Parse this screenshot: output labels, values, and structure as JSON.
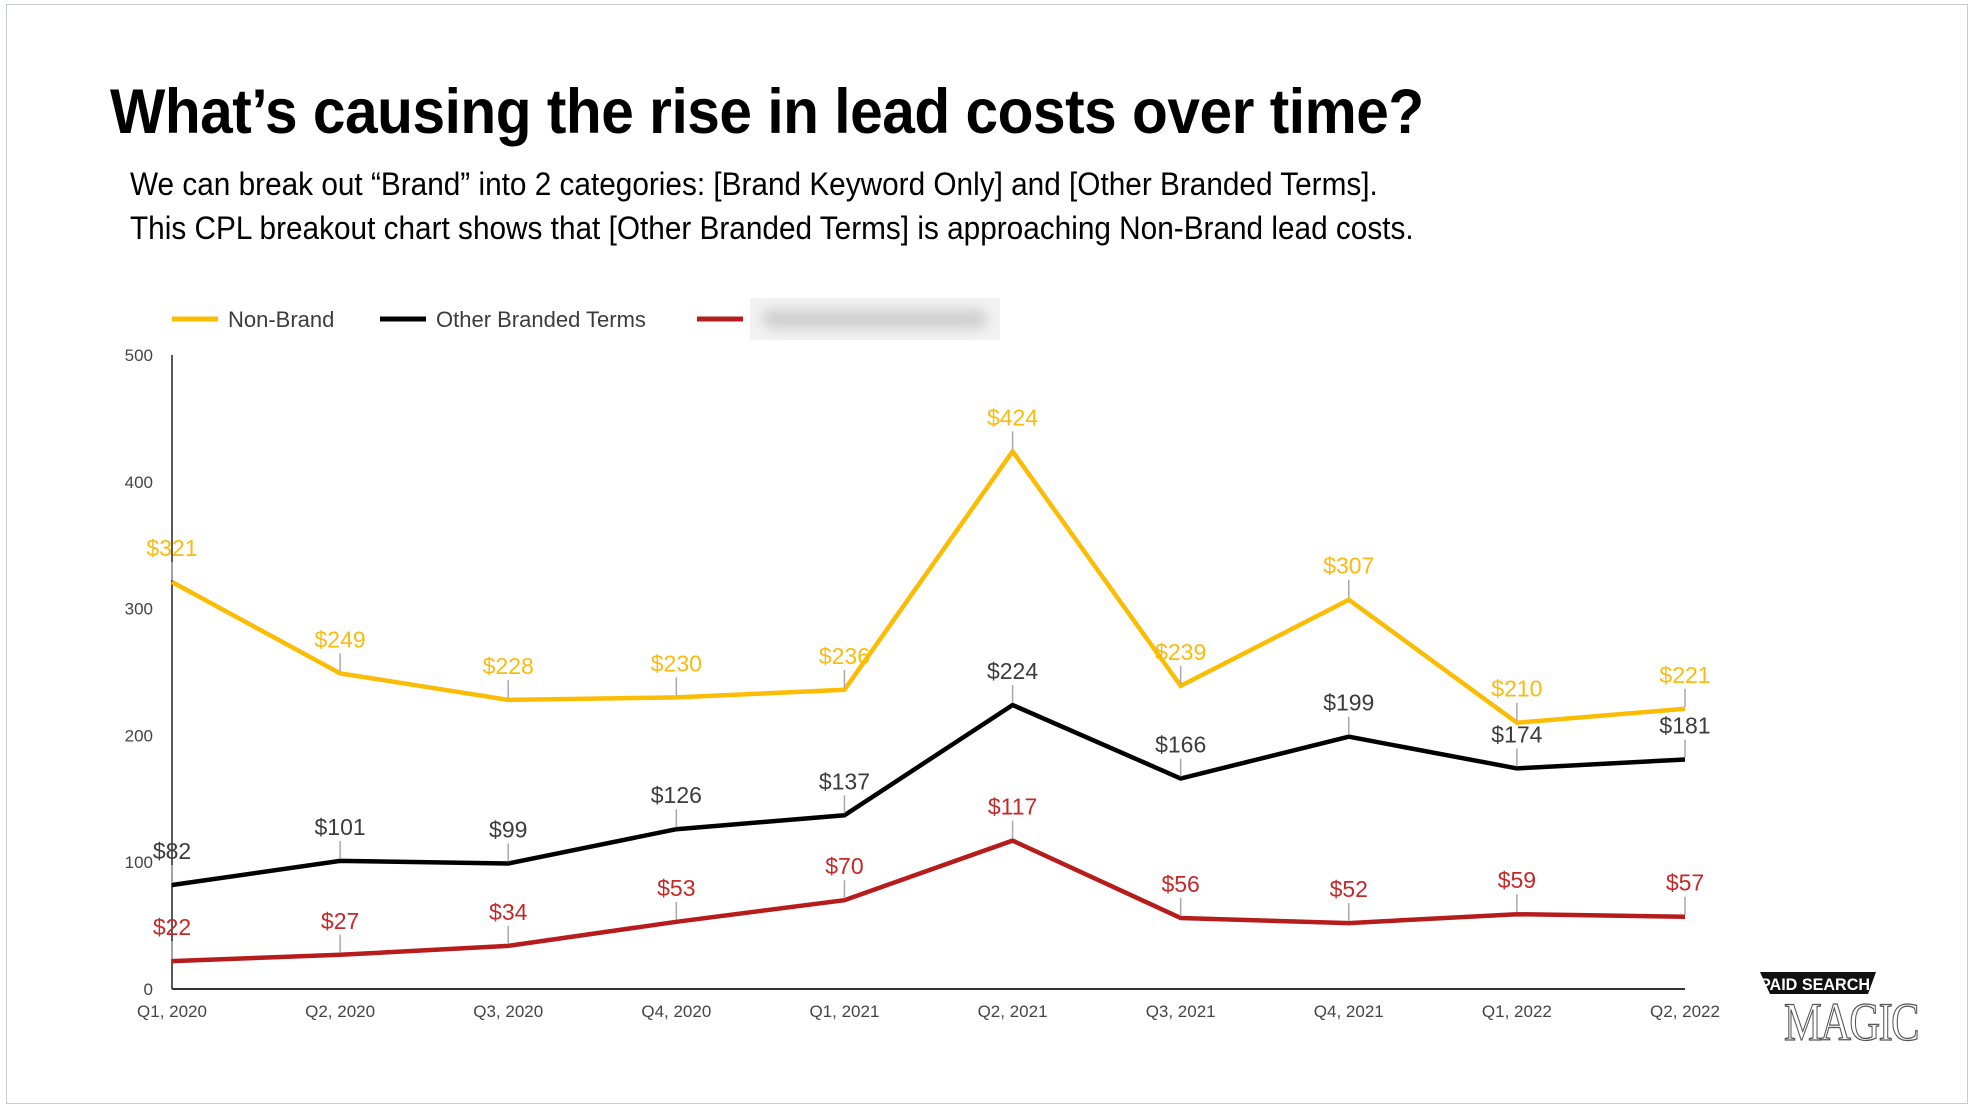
{
  "slide": {
    "title": "What’s causing the rise in lead costs over time?",
    "subtitle_lines": [
      "We can break out “Brand” into 2 categories: [Brand Keyword Only] and [Other Branded Terms].",
      "This CPL breakout chart shows that  [Other Branded Terms] is approaching Non-Brand lead costs."
    ],
    "logo": {
      "top": "PAID SEARCH",
      "bottom": "MAGIC"
    }
  },
  "chart_data": {
    "type": "line",
    "title": "",
    "xlabel": "",
    "ylabel": "",
    "categories": [
      "Q1, 2020",
      "Q2, 2020",
      "Q3, 2020",
      "Q4, 2020",
      "Q1, 2021",
      "Q2, 2021",
      "Q3, 2021",
      "Q4, 2021",
      "Q1, 2022",
      "Q2, 2022"
    ],
    "ylim": [
      0,
      500
    ],
    "yticks": [
      0,
      100,
      200,
      300,
      400,
      500
    ],
    "grid": false,
    "legend_position": "top-left",
    "label_prefix": "$",
    "series": [
      {
        "name": "Non-Brand",
        "color": "#FBBC04",
        "label_color": "#F9BB0F",
        "values": [
          321,
          249,
          228,
          230,
          236,
          424,
          239,
          307,
          210,
          221
        ]
      },
      {
        "name": "Other Branded Terms",
        "color": "#000000",
        "label_color": "#3c3c3c",
        "values": [
          82,
          101,
          99,
          126,
          137,
          224,
          166,
          199,
          174,
          181
        ]
      },
      {
        "name": "[redacted]",
        "color": "#B71C1C",
        "label_color": "#C62828",
        "redacted": true,
        "values": [
          22,
          27,
          34,
          53,
          70,
          117,
          56,
          52,
          59,
          57
        ]
      }
    ]
  }
}
